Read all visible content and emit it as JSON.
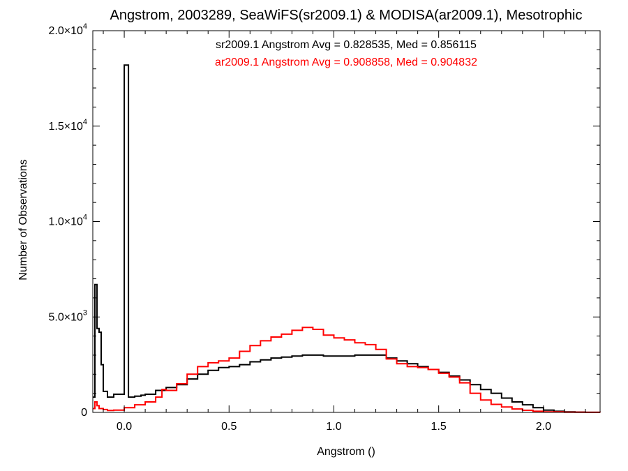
{
  "chart_data": {
    "type": "line",
    "title": "Angstrom, 2003289, SeaWiFS(sr2009.1) & MODISA(ar2009.1), Mesotrophic",
    "xlabel": "Angstrom ()",
    "ylabel": "Number of Observations",
    "xlim": [
      -0.15,
      2.27
    ],
    "ylim": [
      0,
      20000
    ],
    "x_ticks": [
      {
        "value": 0.0,
        "label": "0.0"
      },
      {
        "value": 0.5,
        "label": "0.5"
      },
      {
        "value": 1.0,
        "label": "1.0"
      },
      {
        "value": 1.5,
        "label": "1.5"
      },
      {
        "value": 2.0,
        "label": "2.0"
      }
    ],
    "y_ticks": [
      {
        "value": 0,
        "mantissa": "0",
        "exponent": ""
      },
      {
        "value": 5000,
        "mantissa": "5.0×10",
        "exponent": "3"
      },
      {
        "value": 10000,
        "mantissa": "1.0×10",
        "exponent": "4"
      },
      {
        "value": 15000,
        "mantissa": "1.5×10",
        "exponent": "4"
      },
      {
        "value": 20000,
        "mantissa": "2.0×10",
        "exponent": "4"
      }
    ],
    "annotations": [
      {
        "text": "sr2009.1 Angstrom Avg = 0.828535, Med = 0.856115",
        "color": "#000000"
      },
      {
        "text": "ar2009.1 Angstrom Avg = 0.908858, Med = 0.904832",
        "color": "#ff0000"
      }
    ],
    "series": [
      {
        "color": "#000000",
        "x": [
          -0.15,
          -0.14,
          -0.13,
          -0.12,
          -0.11,
          -0.1,
          -0.08,
          -0.05,
          0.0,
          0.02,
          0.05,
          0.08,
          0.1,
          0.15,
          0.2,
          0.25,
          0.3,
          0.35,
          0.4,
          0.45,
          0.5,
          0.55,
          0.6,
          0.65,
          0.7,
          0.75,
          0.8,
          0.85,
          0.9,
          0.95,
          1.0,
          1.05,
          1.1,
          1.15,
          1.2,
          1.25,
          1.3,
          1.35,
          1.4,
          1.45,
          1.5,
          1.55,
          1.6,
          1.65,
          1.7,
          1.75,
          1.8,
          1.85,
          1.9,
          1.95,
          2.0,
          2.05,
          2.1,
          2.15,
          2.2,
          2.27
        ],
        "y": [
          800,
          6700,
          4400,
          4200,
          2500,
          1100,
          800,
          950,
          18200,
          800,
          850,
          900,
          950,
          1150,
          1300,
          1450,
          1750,
          2000,
          2200,
          2350,
          2400,
          2500,
          2650,
          2750,
          2850,
          2900,
          2950,
          3000,
          3000,
          2950,
          2950,
          2950,
          3000,
          3000,
          3000,
          2850,
          2700,
          2550,
          2400,
          2250,
          2100,
          1900,
          1700,
          1450,
          1200,
          1000,
          750,
          550,
          400,
          250,
          120,
          60,
          30,
          15,
          5,
          0
        ]
      },
      {
        "color": "#ff0000",
        "x": [
          -0.15,
          -0.14,
          -0.13,
          -0.12,
          -0.1,
          -0.08,
          -0.05,
          0.0,
          0.05,
          0.1,
          0.15,
          0.18,
          0.2,
          0.25,
          0.3,
          0.35,
          0.4,
          0.45,
          0.5,
          0.55,
          0.6,
          0.65,
          0.7,
          0.75,
          0.8,
          0.85,
          0.9,
          0.95,
          1.0,
          1.05,
          1.1,
          1.15,
          1.2,
          1.25,
          1.3,
          1.35,
          1.4,
          1.45,
          1.5,
          1.55,
          1.6,
          1.65,
          1.7,
          1.75,
          1.8,
          1.85,
          1.9,
          1.95,
          2.0,
          2.1,
          2.2,
          2.27
        ],
        "y": [
          200,
          550,
          350,
          200,
          150,
          100,
          120,
          250,
          400,
          550,
          800,
          1200,
          1150,
          1500,
          2000,
          2400,
          2600,
          2700,
          2850,
          3200,
          3500,
          3750,
          3950,
          4100,
          4300,
          4450,
          4350,
          4050,
          3900,
          3800,
          3650,
          3550,
          3300,
          2800,
          2550,
          2400,
          2350,
          2250,
          2050,
          1850,
          1550,
          1000,
          650,
          420,
          280,
          180,
          110,
          60,
          30,
          10,
          3,
          0
        ]
      }
    ]
  }
}
